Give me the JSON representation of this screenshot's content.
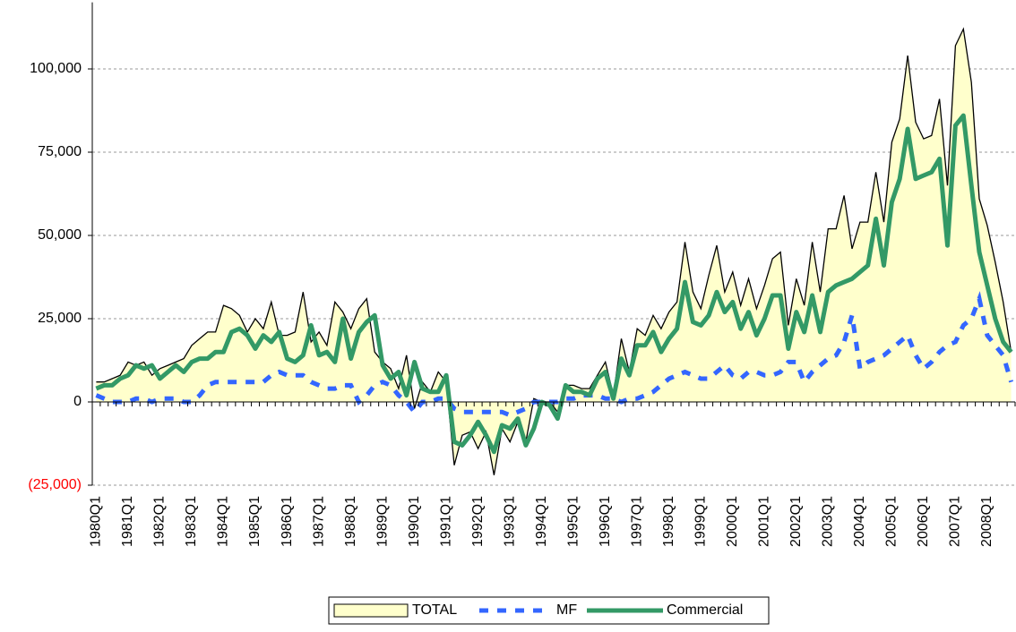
{
  "chart_data": {
    "type": "line",
    "categories": [
      "1980Q1",
      null,
      null,
      null,
      "1981Q1",
      null,
      null,
      null,
      "1982Q1",
      null,
      null,
      null,
      "1983Q1",
      null,
      null,
      null,
      "1984Q1",
      null,
      null,
      null,
      "1985Q1",
      null,
      null,
      null,
      "1986Q1",
      null,
      null,
      null,
      "1987Q1",
      null,
      null,
      null,
      "1988Q1",
      null,
      null,
      null,
      "1989Q1",
      null,
      null,
      null,
      "1990Q1",
      null,
      null,
      null,
      "1991Q1",
      null,
      null,
      null,
      "1992Q1",
      null,
      null,
      null,
      "1993Q1",
      null,
      null,
      null,
      "1994Q1",
      null,
      null,
      null,
      "1995Q1",
      null,
      null,
      null,
      "1996Q1",
      null,
      null,
      null,
      "1997Q1",
      null,
      null,
      null,
      "1998Q1",
      null,
      null,
      null,
      "1999Q1",
      null,
      null,
      null,
      "2000Q1",
      null,
      null,
      null,
      "2001Q1",
      null,
      null,
      null,
      "2002Q1",
      null,
      null,
      null,
      "2003Q1",
      null,
      null,
      null,
      "2004Q1",
      null,
      null,
      null,
      "2005Q1",
      null,
      null,
      null,
      "2006Q1",
      null,
      null,
      null,
      "2007Q1",
      null,
      null,
      null,
      "2008Q1",
      null,
      null,
      null
    ],
    "series": [
      {
        "name": "TOTAL",
        "color": "#ffffcc",
        "style": "area",
        "values": [
          6000,
          6000,
          7000,
          8000,
          12000,
          11000,
          12000,
          8000,
          10000,
          11000,
          12000,
          13000,
          17000,
          19000,
          21000,
          21000,
          29000,
          28000,
          26000,
          21000,
          25000,
          22000,
          30000,
          20000,
          20000,
          21000,
          33000,
          18000,
          21000,
          17000,
          30000,
          27000,
          22000,
          28000,
          31000,
          15000,
          12000,
          10000,
          4000,
          14000,
          -2000,
          6000,
          3000,
          9000,
          6000,
          -19000,
          -10000,
          -9000,
          -14000,
          -9000,
          -22000,
          -8000,
          -12000,
          -6000,
          -12000,
          1000,
          0,
          0,
          -3000,
          5000,
          5000,
          4000,
          4000,
          8000,
          12000,
          2000,
          19000,
          9000,
          22000,
          20000,
          26000,
          22000,
          27000,
          30000,
          48000,
          33000,
          28000,
          38000,
          47000,
          33000,
          39000,
          29000,
          37000,
          28000,
          35000,
          43000,
          45000,
          23000,
          37000,
          29000,
          48000,
          33000,
          52000,
          52000,
          62000,
          46000,
          54000,
          54000,
          69000,
          54000,
          78000,
          85000,
          104000,
          84000,
          79000,
          80000,
          91000,
          65000,
          107000,
          112000,
          96000,
          61000,
          53000,
          42000,
          30000,
          15000
        ]
      },
      {
        "name": "MF",
        "color": "#3366ff",
        "style": "dash",
        "values": [
          2000,
          1000,
          0,
          0,
          0,
          1000,
          1000,
          0,
          1000,
          1000,
          1000,
          0,
          0,
          2000,
          5000,
          6000,
          6000,
          6000,
          6000,
          6000,
          6000,
          6000,
          8000,
          9000,
          8000,
          8000,
          8000,
          6000,
          5000,
          4000,
          4000,
          5000,
          5000,
          0,
          2000,
          5000,
          6000,
          5000,
          2000,
          0,
          -3000,
          0,
          0,
          1000,
          1000,
          -2000,
          -3000,
          -3000,
          -3000,
          -3000,
          -3000,
          -3000,
          -4000,
          -3000,
          -2000,
          0,
          0,
          0,
          0,
          1000,
          1000,
          2000,
          2000,
          2000,
          1000,
          1000,
          0,
          1000,
          1000,
          2000,
          3000,
          5000,
          7000,
          8000,
          9000,
          8000,
          7000,
          7000,
          9000,
          11000,
          8000,
          7000,
          9000,
          9000,
          8000,
          8000,
          9000,
          12000,
          12000,
          6000,
          9000,
          11000,
          13000,
          14000,
          18000,
          26000,
          10000,
          12000,
          13000,
          14000,
          16000,
          18000,
          20000,
          14000,
          10000,
          12000,
          15000,
          17000,
          18000,
          23000,
          25000,
          31000,
          20000,
          17000,
          14000,
          6000
        ]
      },
      {
        "name": "Commercial",
        "color": "#339966",
        "style": "solid",
        "values": [
          4000,
          5000,
          5000,
          7000,
          8000,
          11000,
          10000,
          11000,
          7000,
          9000,
          11000,
          9000,
          12000,
          13000,
          13000,
          15000,
          15000,
          21000,
          22000,
          20000,
          16000,
          20000,
          18000,
          21000,
          13000,
          12000,
          14000,
          23000,
          14000,
          15000,
          12000,
          25000,
          13000,
          21000,
          24000,
          26000,
          11000,
          7000,
          9000,
          2000,
          12000,
          4000,
          3000,
          3000,
          8000,
          -12000,
          -13000,
          -10000,
          -6000,
          -10000,
          -15000,
          -7000,
          -8000,
          -5000,
          -13000,
          -8000,
          0,
          -1000,
          -5000,
          5000,
          3000,
          3000,
          2000,
          7000,
          9000,
          1000,
          13000,
          8000,
          17000,
          17000,
          21000,
          15000,
          19000,
          22000,
          36000,
          24000,
          23000,
          26000,
          33000,
          27000,
          30000,
          22000,
          27000,
          20000,
          25000,
          32000,
          32000,
          16000,
          27000,
          21000,
          32000,
          21000,
          33000,
          35000,
          36000,
          37000,
          39000,
          41000,
          55000,
          41000,
          60000,
          67000,
          82000,
          67000,
          68000,
          69000,
          73000,
          47000,
          83000,
          86000,
          65000,
          45000,
          35000,
          25000,
          18000,
          15000
        ]
      }
    ],
    "ylim": [
      -25000,
      120000
    ],
    "yticks": [
      {
        "value": -25000,
        "label": "(25,000)"
      },
      0,
      {
        "value": 25000,
        "label": "25,000"
      },
      {
        "value": 50000,
        "label": "50,000"
      },
      {
        "value": 75000,
        "label": "75,000"
      },
      {
        "value": 100000,
        "label": "100,000"
      }
    ],
    "grid": true
  }
}
